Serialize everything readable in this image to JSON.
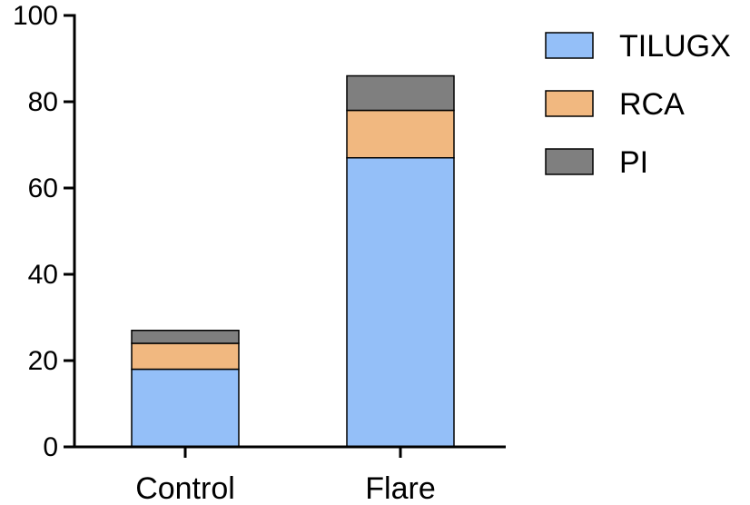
{
  "chart_data": {
    "type": "bar",
    "stacked": true,
    "title": "",
    "xlabel": "",
    "ylabel": "",
    "categories": [
      "Control",
      "Flare"
    ],
    "series": [
      {
        "name": "TILUGX",
        "values": [
          18,
          67
        ],
        "color": "#94bff8"
      },
      {
        "name": "RCA",
        "values": [
          6,
          11
        ],
        "color": "#f1b880"
      },
      {
        "name": "PI",
        "values": [
          3,
          8
        ],
        "color": "#7f7f7f"
      }
    ],
    "ylim": [
      0,
      100
    ],
    "yticks": [
      0,
      20,
      40,
      60,
      80,
      100
    ],
    "grid": false,
    "legend_position": "top-right"
  }
}
